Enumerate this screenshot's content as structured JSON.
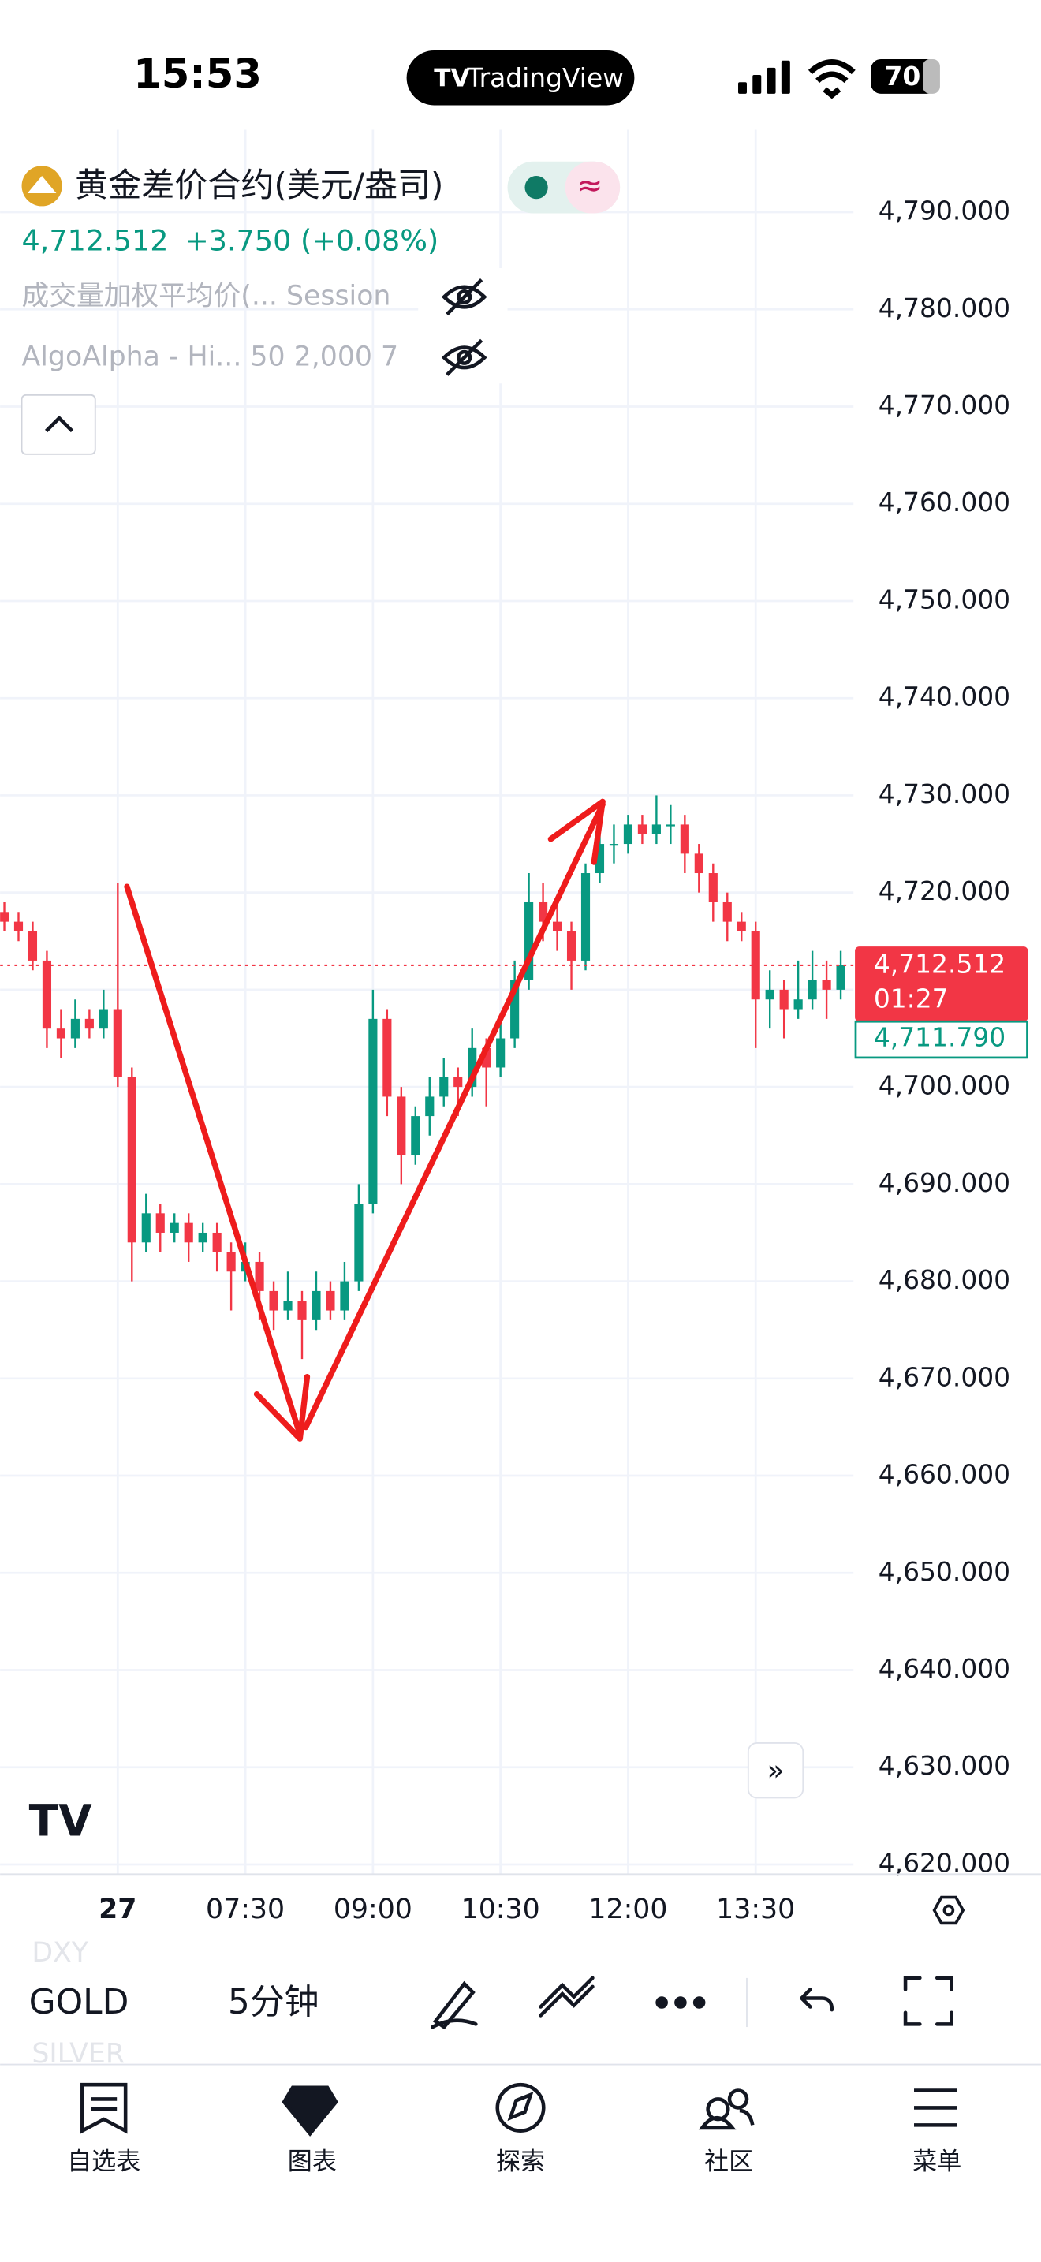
{
  "status_bar": {
    "time": "15:53",
    "app": "TradingView",
    "battery": "70"
  },
  "header": {
    "symbol": "黄金差价合约(美元/盎司)",
    "price": "4,712.512",
    "change": "+3.750 (+0.08%)",
    "indicators": [
      "成交量加权平均价(... Session",
      "AlgoAlpha - Hi... 50 2,000 7"
    ]
  },
  "chart_data": {
    "type": "candlestick",
    "up_color": "#089981",
    "down_color": "#f23645",
    "grid": true,
    "x": [
      280,
      290,
      300,
      310,
      320,
      330,
      340,
      350,
      360,
      370,
      380,
      390,
      400,
      410,
      420,
      430,
      440,
      450,
      460,
      470,
      480,
      490,
      500,
      510,
      520,
      530,
      540,
      550,
      560,
      570,
      580,
      590,
      600,
      610,
      620,
      630,
      640,
      650,
      660,
      670,
      680,
      690,
      700,
      710,
      720,
      730,
      740,
      750,
      760,
      770,
      780,
      790,
      800,
      810,
      820,
      830,
      840,
      850,
      860,
      870
    ],
    "ohlc": [
      [
        4718,
        4719,
        4716,
        4717
      ],
      [
        4717,
        4718,
        4715,
        4716
      ],
      [
        4716,
        4717,
        4712,
        4713
      ],
      [
        4713,
        4714,
        4704,
        4706
      ],
      [
        4706,
        4708,
        4703,
        4705
      ],
      [
        4705,
        4709,
        4704,
        4707
      ],
      [
        4707,
        4708,
        4705,
        4706
      ],
      [
        4706,
        4710,
        4705,
        4708
      ],
      [
        4708,
        4721,
        4700,
        4701
      ],
      [
        4701,
        4702,
        4680,
        4684
      ],
      [
        4684,
        4689,
        4683,
        4687
      ],
      [
        4687,
        4688,
        4683,
        4685
      ],
      [
        4685,
        4687,
        4684,
        4686
      ],
      [
        4686,
        4687,
        4682,
        4684
      ],
      [
        4684,
        4686,
        4683,
        4685
      ],
      [
        4685,
        4686,
        4681,
        4683
      ],
      [
        4683,
        4684,
        4677,
        4681
      ],
      [
        4681,
        4684,
        4680,
        4682
      ],
      [
        4682,
        4683,
        4676,
        4679
      ],
      [
        4679,
        4680,
        4675,
        4677
      ],
      [
        4677,
        4681,
        4676,
        4678
      ],
      [
        4678,
        4679,
        4672,
        4676
      ],
      [
        4676,
        4681,
        4675,
        4679
      ],
      [
        4679,
        4680,
        4676,
        4677
      ],
      [
        4677,
        4682,
        4676,
        4680
      ],
      [
        4680,
        4690,
        4679,
        4688
      ],
      [
        4688,
        4710,
        4687,
        4707
      ],
      [
        4707,
        4708,
        4697,
        4699
      ],
      [
        4699,
        4700,
        4690,
        4693
      ],
      [
        4693,
        4698,
        4692,
        4697
      ],
      [
        4697,
        4701,
        4695,
        4699
      ],
      [
        4699,
        4703,
        4698,
        4701
      ],
      [
        4701,
        4702,
        4697,
        4700
      ],
      [
        4700,
        4706,
        4699,
        4704
      ],
      [
        4704,
        4705,
        4698,
        4702
      ],
      [
        4702,
        4707,
        4701,
        4705
      ],
      [
        4705,
        4713,
        4704,
        4711
      ],
      [
        4711,
        4722,
        4710,
        4719
      ],
      [
        4719,
        4721,
        4715,
        4717
      ],
      [
        4717,
        4719,
        4714,
        4716
      ],
      [
        4716,
        4717,
        4710,
        4713
      ],
      [
        4713,
        4723,
        4712,
        4722
      ],
      [
        4722,
        4728,
        4721,
        4725
      ],
      [
        4725,
        4727,
        4723,
        4725
      ],
      [
        4725,
        4728,
        4724,
        4727
      ],
      [
        4727,
        4728,
        4725,
        4726
      ],
      [
        4726,
        4730,
        4725,
        4727
      ],
      [
        4727,
        4729,
        4725,
        4727
      ],
      [
        4727,
        4728,
        4722,
        4724
      ],
      [
        4724,
        4725,
        4720,
        4722
      ],
      [
        4722,
        4723,
        4717,
        4719
      ],
      [
        4719,
        4720,
        4715,
        4717
      ],
      [
        4717,
        4718,
        4715,
        4716
      ],
      [
        4716,
        4717,
        4704,
        4709
      ],
      [
        4709,
        4712,
        4706,
        4710
      ],
      [
        4710,
        4711,
        4705,
        4708
      ],
      [
        4708,
        4713,
        4707,
        4709
      ],
      [
        4709,
        4714,
        4708,
        4711
      ],
      [
        4711,
        4713,
        4707,
        4710
      ],
      [
        4710,
        4714,
        4709,
        4712.512
      ]
    ],
    "xlim": [
      277,
      879
    ],
    "xticks": [
      {
        "value": 360,
        "label": "27"
      },
      {
        "value": 450,
        "label": "07:30"
      },
      {
        "value": 540,
        "label": "09:00"
      },
      {
        "value": 630,
        "label": "10:30"
      },
      {
        "value": 720,
        "label": "12:00"
      },
      {
        "value": 810,
        "label": "13:30"
      }
    ],
    "ylim": [
      4619,
      4797
    ],
    "yticks": [
      {
        "value": 4790,
        "label": "4,790.000"
      },
      {
        "value": 4780,
        "label": "4,780.000"
      },
      {
        "value": 4770,
        "label": "4,770.000"
      },
      {
        "value": 4760,
        "label": "4,760.000"
      },
      {
        "value": 4750,
        "label": "4,750.000"
      },
      {
        "value": 4740,
        "label": "4,740.000"
      },
      {
        "value": 4730,
        "label": "4,730.000"
      },
      {
        "value": 4720,
        "label": "4,720.000"
      },
      {
        "value": 4710,
        "label": "4,710.000"
      },
      {
        "value": 4700,
        "label": "4,700.000"
      },
      {
        "value": 4690,
        "label": "4,690.000"
      },
      {
        "value": 4680,
        "label": "4,680.000"
      },
      {
        "value": 4670,
        "label": "4,670.000"
      },
      {
        "value": 4660,
        "label": "4,660.000"
      },
      {
        "value": 4650,
        "label": "4,650.000"
      },
      {
        "value": 4640,
        "label": "4,640.000"
      },
      {
        "value": 4630,
        "label": "4,630.000"
      },
      {
        "value": 4620,
        "label": "4,620.000"
      }
    ],
    "price_tags": [
      {
        "value": 4712.512,
        "label": "4,712.512",
        "countdown": "01:27",
        "color": "#f23645"
      },
      {
        "value": 4711.79,
        "label": "4,711.790",
        "color": "#089981"
      }
    ]
  },
  "toolbar": {
    "symbols": [
      "DXY",
      "GOLD",
      "SILVER"
    ],
    "interval": "5分钟"
  },
  "tab_bar": [
    "自选表",
    "图表",
    "探索",
    "社区",
    "菜单"
  ]
}
